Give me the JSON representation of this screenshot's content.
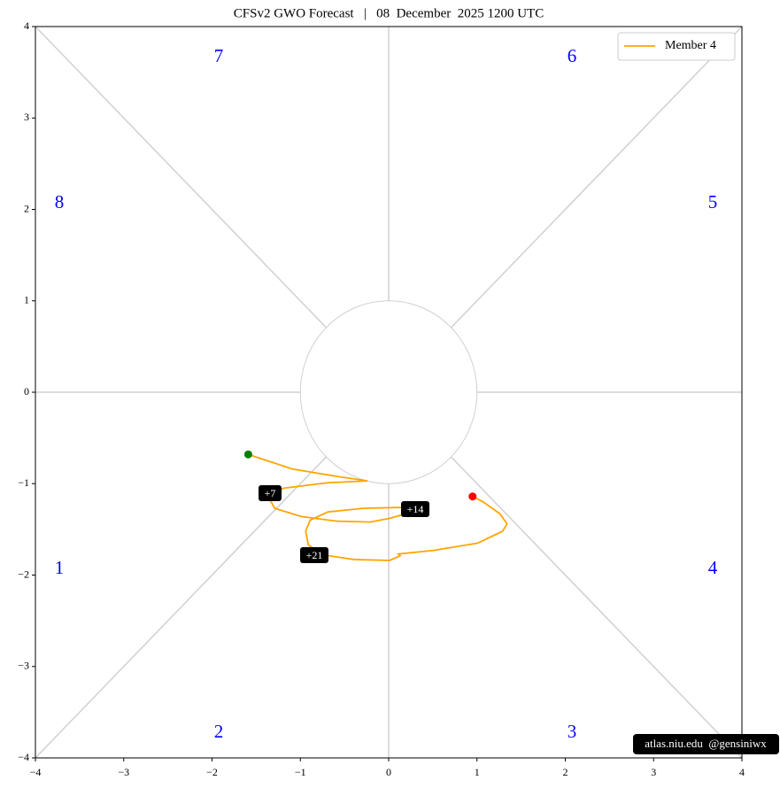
{
  "chart_data": {
    "type": "line",
    "title": "CFSv2 GWO Forecast   |   08  December  2025 1200 UTC",
    "xlim": [
      -4,
      4
    ],
    "ylim": [
      -4,
      4
    ],
    "xticks": [
      {
        "value": -4,
        "label": "−4"
      },
      {
        "value": -3,
        "label": "−3"
      },
      {
        "value": -2,
        "label": "−2"
      },
      {
        "value": -1,
        "label": "−1"
      },
      0,
      1,
      2,
      3,
      4
    ],
    "yticks": [
      {
        "value": -4,
        "label": "−4"
      },
      {
        "value": -3,
        "label": "−3"
      },
      {
        "value": -2,
        "label": "−2"
      },
      {
        "value": -1,
        "label": "−1"
      },
      0,
      1,
      2,
      3,
      4
    ],
    "x": [
      -1.59,
      -1.09,
      -0.59,
      -0.24,
      -0.69,
      -1.19,
      -1.36,
      -1.29,
      -0.99,
      -0.59,
      -0.21,
      0.01,
      0.23,
      0.16,
      -0.29,
      -0.69,
      -0.89,
      -0.94,
      -0.91,
      -0.74,
      -0.39,
      0.01,
      0.13,
      0.11,
      0.51,
      1.01,
      1.29,
      1.34,
      1.26,
      1.07,
      0.95
    ],
    "series": [
      {
        "name": "Member 4",
        "color": "orange",
        "values": [
          -0.68,
          -0.84,
          -0.92,
          -0.97,
          -0.99,
          -1.05,
          -1.15,
          -1.27,
          -1.36,
          -1.41,
          -1.42,
          -1.38,
          -1.32,
          -1.26,
          -1.27,
          -1.31,
          -1.4,
          -1.52,
          -1.67,
          -1.78,
          -1.83,
          -1.84,
          -1.79,
          -1.77,
          -1.73,
          -1.65,
          -1.52,
          -1.44,
          -1.33,
          -1.2,
          -1.14
        ]
      }
    ],
    "start_color": "green",
    "end_color": "red",
    "annotations": [
      "+7",
      "+14",
      "+21"
    ],
    "phase_labels": [
      "1",
      "2",
      "3",
      "4",
      "5",
      "6",
      "7",
      "8"
    ],
    "credit": "atlas.niu.edu  @gensiniwx",
    "legend": "upper right"
  }
}
